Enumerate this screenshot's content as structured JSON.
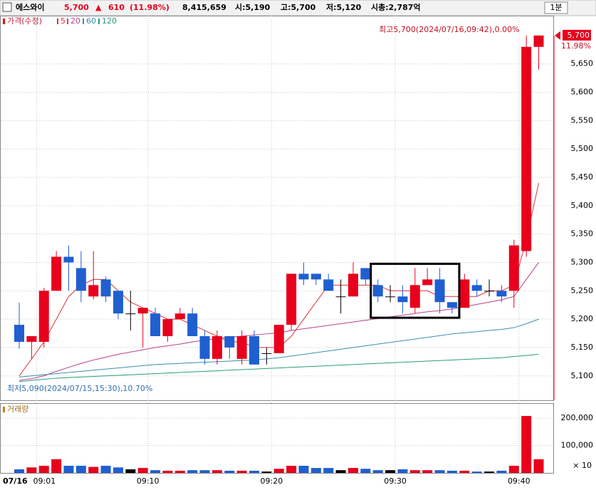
{
  "header": {
    "name": "에스와이",
    "price": "5,700",
    "arrow": "▲",
    "change": "610",
    "change_pct": "(11.98%)",
    "volume": "8,415,659",
    "open": "시:5,190",
    "high": "고:5,700",
    "low": "저:5,120",
    "market_cap": "시총:2,787억",
    "interval": "1분"
  },
  "chart_data": {
    "type": "candlestick",
    "legend": [
      "가격(수정)",
      "5",
      "20",
      "60",
      "120"
    ],
    "date": "07/16",
    "categories": [
      null,
      "09:01",
      null,
      null,
      null,
      null,
      null,
      null,
      null,
      null,
      "09:10",
      null,
      null,
      null,
      null,
      null,
      null,
      null,
      null,
      null,
      "09:20",
      null,
      null,
      null,
      null,
      null,
      null,
      null,
      null,
      null,
      "09:30",
      null,
      null,
      null,
      null,
      null,
      null,
      null,
      null,
      null,
      "09:40",
      null,
      null
    ],
    "open": [
      5190,
      5160,
      5160,
      5250,
      5310,
      5290,
      5240,
      5270,
      5250,
      5210,
      5210,
      5210,
      5170,
      5200,
      5210,
      5170,
      5130,
      5170,
      5130,
      5170,
      5140,
      5140,
      5190,
      5280,
      5280,
      5270,
      5240,
      5240,
      5290,
      5260,
      5240,
      5240,
      5220,
      5260,
      5270,
      5230,
      5220,
      5260,
      5250,
      5250,
      5250,
      5320,
      5680
    ],
    "high": [
      5229,
      5170,
      5255,
      5320,
      5330,
      5320,
      5320,
      5275,
      5250,
      5250,
      5220,
      5220,
      5200,
      5220,
      5220,
      5180,
      5180,
      5170,
      5180,
      5180,
      5150,
      5190,
      5280,
      5300,
      5280,
      5280,
      5270,
      5300,
      5290,
      5270,
      5260,
      5260,
      5290,
      5290,
      5290,
      5230,
      5280,
      5270,
      5270,
      5260,
      5340,
      5700,
      5700
    ],
    "low": [
      5148,
      5130,
      5150,
      5250,
      5250,
      5230,
      5235,
      5230,
      5200,
      5180,
      5150,
      5170,
      5160,
      5200,
      5170,
      5120,
      5120,
      5130,
      5120,
      5120,
      5120,
      5140,
      5180,
      5260,
      5260,
      5250,
      5210,
      5240,
      5260,
      5230,
      5230,
      5210,
      5210,
      5260,
      5210,
      5210,
      5220,
      5240,
      5240,
      5230,
      5220,
      5310,
      5640
    ],
    "close": [
      5160,
      5170,
      5250,
      5310,
      5300,
      5250,
      5260,
      5240,
      5210,
      5210,
      5220,
      5170,
      5200,
      5210,
      5170,
      5130,
      5170,
      5150,
      5170,
      5120,
      5140,
      5190,
      5280,
      5270,
      5270,
      5250,
      5240,
      5280,
      5270,
      5240,
      5240,
      5230,
      5260,
      5270,
      5230,
      5220,
      5270,
      5250,
      5250,
      5240,
      5330,
      5680,
      5700
    ],
    "up_color": "#e8001c",
    "down_color": "#1f5fd0",
    "flat_color": "#000000",
    "series": [
      {
        "name": "5",
        "color": "#e0303a",
        "values": [
          5100,
          5130,
          5160,
          5200,
          5240,
          5260,
          5270,
          5270,
          5250,
          5230,
          5220,
          5210,
          5200,
          5200,
          5190,
          5180,
          5170,
          5160,
          5160,
          5150,
          5150,
          5150,
          5170,
          5200,
          5230,
          5260,
          5260,
          5260,
          5260,
          5260,
          5250,
          5250,
          5250,
          5250,
          5240,
          5240,
          5240,
          5240,
          5250,
          5250,
          5260,
          5340,
          5440
        ]
      },
      {
        "name": "20",
        "color": "#b8408a",
        "values": [
          5092,
          5095,
          5100,
          5108,
          5115,
          5122,
          5128,
          5133,
          5138,
          5142,
          5146,
          5150,
          5153,
          5156,
          5160,
          5163,
          5166,
          5168,
          5170,
          5172,
          5174,
          5176,
          5180,
          5183,
          5186,
          5189,
          5192,
          5195,
          5198,
          5201,
          5204,
          5207,
          5210,
          5213,
          5215,
          5218,
          5222,
          5226,
          5230,
          5234,
          5240,
          5270,
          5300
        ]
      },
      {
        "name": "60",
        "color": "#3a8fb0",
        "values": [
          5098,
          5100,
          5102,
          5104,
          5106,
          5108,
          5110,
          5112,
          5114,
          5116,
          5118,
          5120,
          5121,
          5122,
          5123,
          5124,
          5125,
          5126,
          5127,
          5128,
          5130,
          5132,
          5135,
          5138,
          5141,
          5144,
          5147,
          5150,
          5153,
          5156,
          5159,
          5162,
          5165,
          5168,
          5171,
          5174,
          5176,
          5178,
          5180,
          5182,
          5185,
          5192,
          5200
        ]
      },
      {
        "name": "120",
        "color": "#2a9a80",
        "values": [
          5090,
          5092,
          5094,
          5096,
          5097,
          5098,
          5099,
          5100,
          5101,
          5102,
          5103,
          5104,
          5105,
          5106,
          5107,
          5108,
          5109,
          5110,
          5111,
          5112,
          5113,
          5114,
          5115,
          5116,
          5117,
          5118,
          5119,
          5120,
          5121,
          5122,
          5123,
          5124,
          5125,
          5126,
          5127,
          5128,
          5129,
          5130,
          5131,
          5132,
          5134,
          5136,
          5138
        ]
      }
    ],
    "ylim": [
      5057,
      5735
    ],
    "yticks": [
      {
        "value": 5100,
        "label": "5,100"
      },
      {
        "value": 5150,
        "label": "5,150"
      },
      {
        "value": 5200,
        "label": "5,200"
      },
      {
        "value": 5250,
        "label": "5,250"
      },
      {
        "value": 5300,
        "label": "5,300"
      },
      {
        "value": 5350,
        "label": "5,350"
      },
      {
        "value": 5400,
        "label": "5,400"
      },
      {
        "value": 5450,
        "label": "5,450"
      },
      {
        "value": 5500,
        "label": "5,500"
      },
      {
        "value": 5550,
        "label": "5,550"
      },
      {
        "value": 5600,
        "label": "5,600"
      },
      {
        "value": 5650,
        "label": "5,650"
      }
    ],
    "last_price_label": "5,700",
    "last_pct_label": "11.98%",
    "high_annotation": "최고5,700(2024/07/16,09:42),0.00%",
    "low_annotation": "최저5,090(2024/07/15,15:30),10.70%",
    "volume_title": "거래량",
    "volume": [
      13000,
      20000,
      26000,
      50000,
      26000,
      26000,
      22000,
      26000,
      20000,
      13000,
      18000,
      10000,
      8000,
      8000,
      10000,
      10000,
      10000,
      8000,
      8000,
      8000,
      5000,
      15000,
      26000,
      26000,
      18000,
      18000,
      10000,
      18000,
      15000,
      10000,
      10000,
      13000,
      10000,
      10000,
      10000,
      8000,
      8000,
      5000,
      5000,
      8000,
      26000,
      208000,
      50000
    ],
    "vlim": [
      0,
      255000
    ],
    "vticks": [
      {
        "value": 100000,
        "label": "100,000"
      },
      {
        "value": 200000,
        "label": "200,000"
      }
    ],
    "volume_unit": "× 10",
    "grid": true,
    "highlight_box": [
      29,
      35
    ]
  }
}
